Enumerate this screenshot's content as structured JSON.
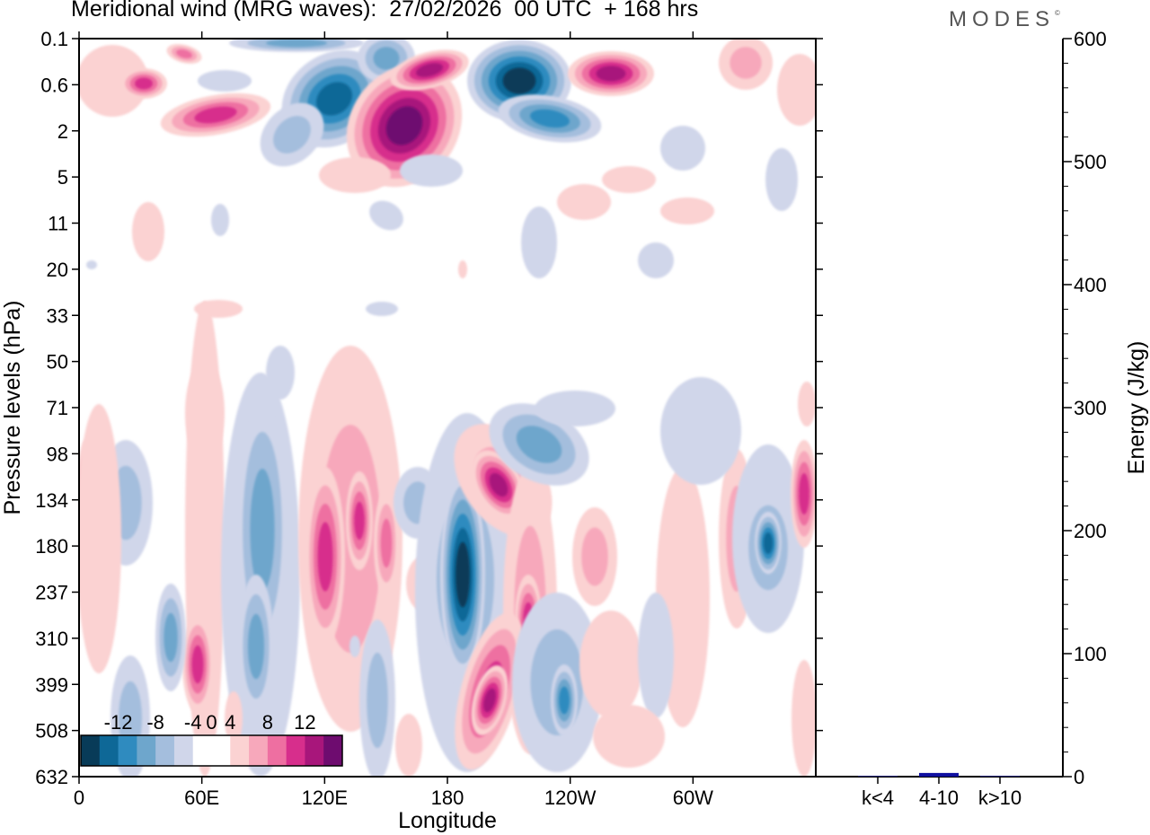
{
  "figure": {
    "title": "Meridional wind (MRG waves):  27/02/2026  00 UTC  + 168 hrs",
    "brand": "MODES",
    "brand_mark": "©"
  },
  "chart_data": [
    {
      "type": "heatmap",
      "title": "Meridional wind (MRG waves)",
      "xlabel": "Longitude",
      "ylabel": "Pressure levels (hPa)",
      "x_ticks": [
        "0",
        "60E",
        "120E",
        "180",
        "120W",
        "60W"
      ],
      "x_tick_degrees": [
        0,
        60,
        120,
        180,
        240,
        300
      ],
      "x_range_degrees": [
        0,
        360
      ],
      "y_ticks": [
        "0.1",
        "0.6",
        "2",
        "5",
        "11",
        "20",
        "33",
        "50",
        "71",
        "98",
        "134",
        "180",
        "237",
        "310",
        "399",
        "508",
        "632"
      ],
      "colorbar": {
        "labels": [
          "-12",
          "-8",
          "-4",
          "0",
          "4",
          "8",
          "12"
        ],
        "label_values": [
          -12,
          -8,
          -4,
          0,
          4,
          8,
          12
        ],
        "levels": [
          -14,
          -12,
          -10,
          -8,
          -6,
          -4,
          -2,
          2,
          4,
          6,
          8,
          10,
          12,
          14
        ],
        "colors": [
          "#083b58",
          "#0e6897",
          "#2f8bbf",
          "#6ea6cc",
          "#a4bedd",
          "#d0d6ea",
          "#ffffff",
          "#ffffff",
          "#fbd2d2",
          "#f7a8bb",
          "#ee6fa1",
          "#d72e8c",
          "#a8167b",
          "#6e0c6f"
        ],
        "palette": {
          "neg6": "#083b58",
          "neg5": "#0e6897",
          "neg4": "#2f8bbf",
          "neg3": "#6ea6cc",
          "neg2": "#a4bedd",
          "neg1": "#d0d6ea",
          "pos1": "#fbd2d2",
          "pos2": "#f7a8bb",
          "pos3": "#ee6fa1",
          "pos4": "#d72e8c",
          "pos5": "#a8167b",
          "pos6": "#6e0c6f"
        }
      },
      "features": [
        {
          "name": "lower-trop-180-negative",
          "lon_deg": 184,
          "level": "98-399 hPa",
          "peak": -14
        },
        {
          "name": "upper-strat-200-negative",
          "lon_deg": 200,
          "level": "0.1-0.6 hPa",
          "peak": -14
        },
        {
          "name": "strat-165-positive",
          "lon_deg": 165,
          "level": "0.6-2 hPa",
          "peak": 14
        },
        {
          "name": "trop-120e-positive",
          "lon_deg": 120,
          "level": "134-237 hPa",
          "peak": 10
        },
        {
          "name": "trop-340-negative",
          "lon_deg": 340,
          "level": "134-237 hPa",
          "peak": -12
        }
      ]
    },
    {
      "type": "bar",
      "title": "",
      "ylabel": "Energy (J/kg)",
      "categories": [
        "k<4",
        "4-10",
        "k>10"
      ],
      "values": [
        0.5,
        3,
        0.5
      ],
      "ylim": [
        0,
        600
      ],
      "y_ticks": [
        "0",
        "100",
        "200",
        "300",
        "400",
        "500",
        "600"
      ],
      "y_tick_values": [
        0,
        100,
        200,
        300,
        400,
        500,
        600
      ],
      "bar_color": "#1010a0"
    }
  ]
}
